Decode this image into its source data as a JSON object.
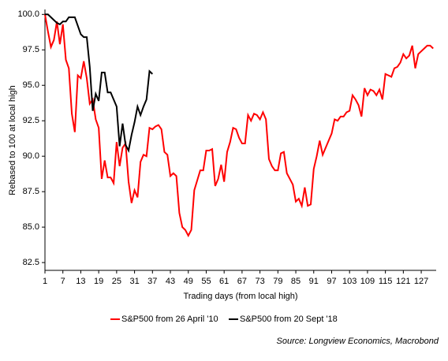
{
  "chart_data": {
    "type": "line",
    "y_label": "Rebased to 100 at local high",
    "x_label": "Trading days (from local high)",
    "source": "Source: Longview Economics, Macrobond",
    "xlim": [
      1,
      132
    ],
    "xticks": [
      1,
      7,
      13,
      19,
      25,
      31,
      37,
      43,
      49,
      55,
      61,
      67,
      73,
      79,
      85,
      91,
      97,
      103,
      109,
      115,
      121,
      127
    ],
    "ylim": [
      81.95,
      100.35
    ],
    "yticks": [
      {
        "value": 82.5,
        "label": "82.5"
      },
      {
        "value": 85,
        "label": "85.0"
      },
      {
        "value": 87.5,
        "label": "87.5"
      },
      {
        "value": 90,
        "label": "90.0"
      },
      {
        "value": 92.5,
        "label": "92.5"
      },
      {
        "value": 95,
        "label": "95.0"
      },
      {
        "value": 97.5,
        "label": "97.5"
      },
      {
        "value": 100,
        "label": "100.0"
      }
    ],
    "series": [
      {
        "name": "S&P500 from 26 April '10",
        "color": "#ff0000",
        "x": [
          1,
          2,
          3,
          4,
          5,
          6,
          7,
          8,
          9,
          10,
          11,
          12,
          13,
          14,
          15,
          16,
          17,
          18,
          19,
          20,
          21,
          22,
          23,
          24,
          25,
          26,
          27,
          28,
          29,
          30,
          31,
          32,
          33,
          34,
          35,
          36,
          37,
          38,
          39,
          40,
          41,
          42,
          43,
          44,
          45,
          46,
          47,
          48,
          49,
          50,
          51,
          52,
          53,
          54,
          55,
          56,
          57,
          58,
          59,
          60,
          61,
          62,
          63,
          64,
          65,
          66,
          67,
          68,
          69,
          70,
          71,
          72,
          73,
          74,
          75,
          76,
          77,
          78,
          79,
          80,
          81,
          82,
          83,
          84,
          85,
          86,
          87,
          88,
          89,
          90,
          91,
          92,
          93,
          94,
          95,
          96,
          97,
          98,
          99,
          100,
          101,
          102,
          103,
          104,
          105,
          106,
          107,
          108,
          109,
          110,
          111,
          112,
          113,
          114,
          115,
          116,
          117,
          118,
          119,
          120,
          121,
          122,
          123,
          124,
          125,
          126,
          127,
          128,
          129,
          130,
          131
        ],
        "values": [
          100.0,
          98.8,
          97.7,
          98.2,
          99.5,
          97.9,
          99.3,
          96.8,
          96.2,
          93.0,
          91.7,
          95.7,
          95.5,
          96.7,
          95.5,
          93.7,
          94.0,
          92.6,
          92.0,
          88.4,
          89.7,
          88.5,
          88.5,
          88.1,
          91.0,
          89.3,
          90.6,
          90.9,
          88.2,
          86.7,
          87.6,
          87.1,
          89.6,
          90.1,
          90.0,
          92.0,
          91.9,
          92.1,
          92.2,
          91.9,
          90.3,
          90.1,
          88.6,
          88.8,
          88.6,
          86.0,
          85.0,
          84.8,
          84.4,
          84.8,
          87.6,
          88.3,
          89.0,
          89.0,
          90.4,
          90.4,
          90.5,
          87.9,
          88.4,
          89.4,
          88.2,
          90.3,
          91.0,
          92.0,
          91.9,
          91.3,
          90.9,
          90.9,
          92.9,
          92.5,
          93.0,
          92.9,
          92.6,
          93.1,
          92.6,
          89.8,
          89.3,
          89.0,
          89.0,
          90.2,
          90.3,
          88.8,
          88.4,
          88.0,
          86.8,
          87.0,
          86.5,
          87.8,
          86.5,
          86.6,
          89.1,
          90.0,
          91.1,
          90.1,
          90.6,
          91.1,
          91.6,
          92.6,
          92.5,
          92.8,
          92.8,
          93.1,
          93.2,
          94.3,
          94.0,
          93.6,
          92.8,
          94.8,
          94.3,
          94.7,
          94.6,
          94.3,
          94.7,
          94.0,
          95.8,
          95.7,
          95.6,
          96.2,
          96.3,
          96.6,
          97.2,
          96.9,
          97.1,
          97.8,
          96.2,
          97.2,
          97.4,
          97.6,
          97.8,
          97.8,
          97.6
        ]
      },
      {
        "name": "S&P500 from 20 Sept '18",
        "color": "#000000",
        "x": [
          1,
          2,
          3,
          4,
          5,
          6,
          7,
          8,
          9,
          10,
          11,
          12,
          13,
          14,
          15,
          16,
          17,
          18,
          19,
          20,
          21,
          22,
          23,
          24,
          25,
          26,
          27,
          28,
          29,
          30,
          31,
          32,
          33,
          34,
          35,
          36,
          37
        ],
        "values": [
          100.0,
          100.0,
          99.8,
          99.6,
          99.4,
          99.3,
          99.5,
          99.5,
          99.8,
          99.8,
          99.8,
          99.2,
          98.6,
          98.4,
          98.4,
          96.3,
          93.2,
          94.4,
          93.9,
          95.9,
          95.9,
          94.5,
          94.5,
          94.0,
          93.5,
          90.7,
          92.3,
          90.8,
          90.4,
          91.5,
          92.4,
          93.5,
          92.9,
          93.5,
          94.0,
          96.0,
          95.8
        ]
      }
    ]
  }
}
